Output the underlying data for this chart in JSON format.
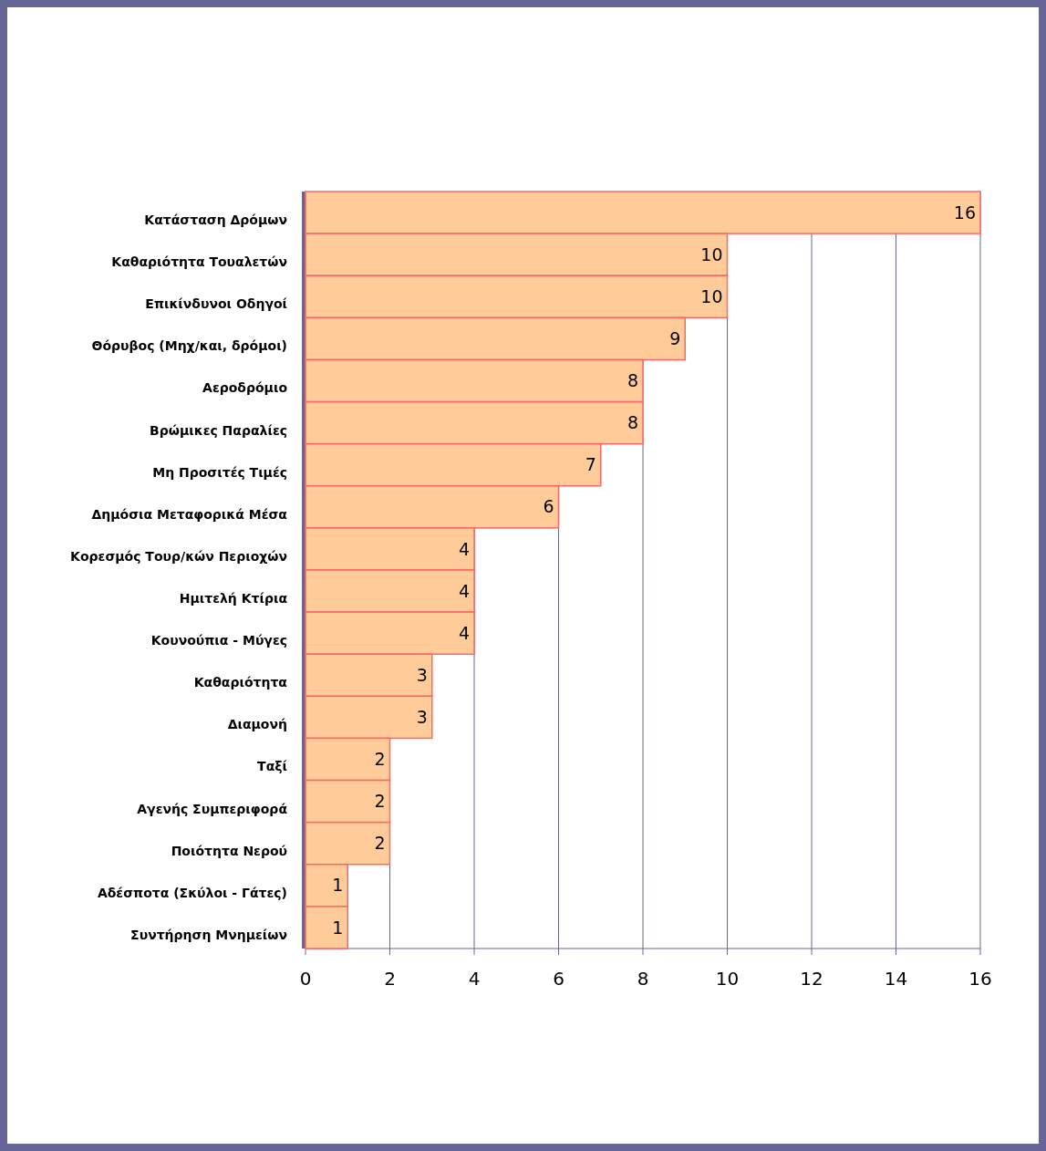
{
  "chart_data": {
    "type": "bar",
    "orientation": "horizontal",
    "categories": [
      "Κατάσταση Δρόμων",
      "Καθαριότητα Τουαλετών",
      "Επικίνδυνοι Οδηγοί",
      "Θόρυβος (Μηχ/και, δρόμοι)",
      "Αεροδρόμιο",
      "Βρώμικες Παραλίες",
      "Μη Προσιτές Τιμές",
      "Δημόσια Μεταφορικά Μέσα",
      "Κορεσμός Τουρ/κών Περιοχών",
      "Ημιτελή Κτίρια",
      "Κουνούπια - Μύγες",
      "Καθαριότητα ",
      "Διαμονή",
      "Ταξί",
      "Αγενής Συμπεριφορά",
      "Ποιότητα Νερού",
      "Αδέσποτα (Σκύλοι - Γάτες)",
      "Συντήρηση Μνημείων"
    ],
    "values": [
      16,
      10,
      10,
      9,
      8,
      8,
      7,
      6,
      4,
      4,
      4,
      3,
      3,
      2,
      2,
      2,
      1,
      1
    ],
    "color": "#ffcc99",
    "xlim": [
      0,
      16
    ],
    "xticks": [
      0,
      2,
      4,
      6,
      8,
      10,
      12,
      14,
      16
    ],
    "grid": "x",
    "data_labels": true
  }
}
